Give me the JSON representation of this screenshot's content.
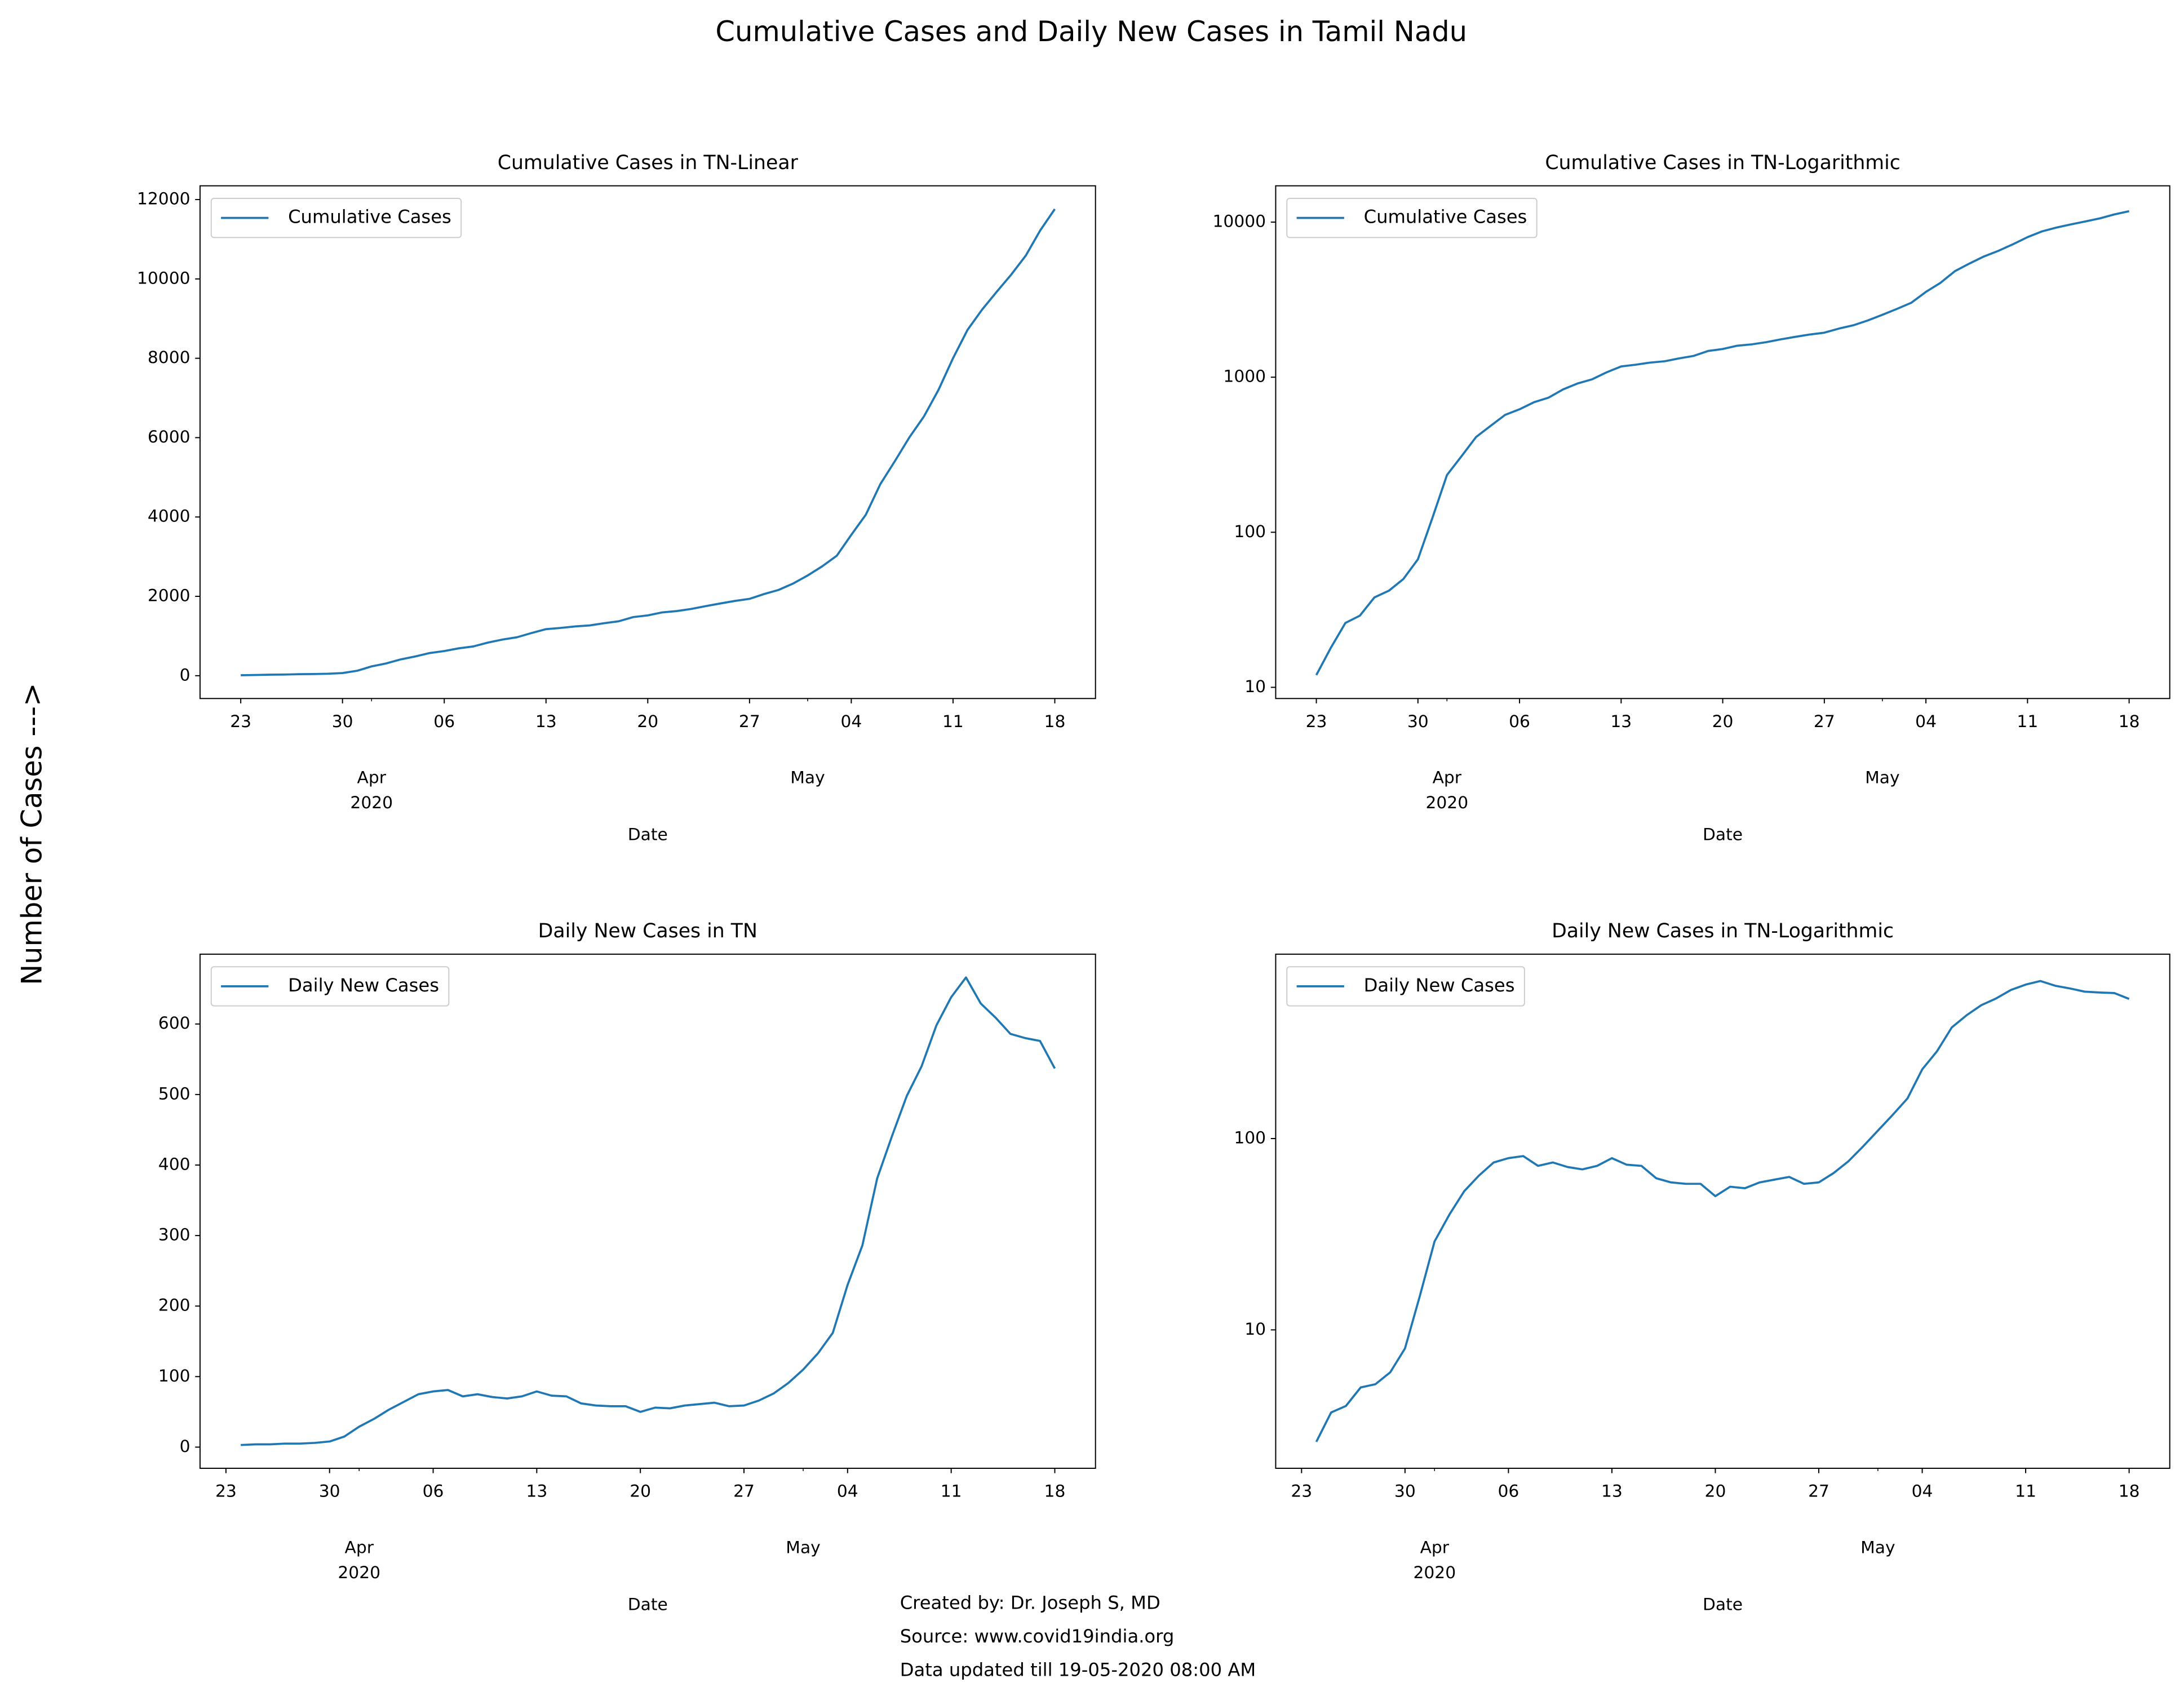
{
  "title": "Cumulative Cases and Daily New Cases in Tamil Nadu",
  "ylabel": "Number of Cases --->",
  "notes": [
    "Created by: Dr. Joseph S, MD",
    "Source: www.covid19india.org",
    "Data updated till 19-05-2020 08:00 AM"
  ],
  "chart_data": [
    {
      "type": "line",
      "title": "Cumulative Cases in TN-Linear",
      "xlabel": "Date",
      "yscale": "linear",
      "legend": "upper left",
      "x": [
        "2020-03-23",
        "2020-03-24",
        "2020-03-25",
        "2020-03-26",
        "2020-03-27",
        "2020-03-28",
        "2020-03-29",
        "2020-03-30",
        "2020-03-31",
        "2020-04-01",
        "2020-04-02",
        "2020-04-03",
        "2020-04-04",
        "2020-04-05",
        "2020-04-06",
        "2020-04-07",
        "2020-04-08",
        "2020-04-09",
        "2020-04-10",
        "2020-04-11",
        "2020-04-12",
        "2020-04-13",
        "2020-04-14",
        "2020-04-15",
        "2020-04-16",
        "2020-04-17",
        "2020-04-18",
        "2020-04-19",
        "2020-04-20",
        "2020-04-21",
        "2020-04-22",
        "2020-04-23",
        "2020-04-24",
        "2020-04-25",
        "2020-04-26",
        "2020-04-27",
        "2020-04-28",
        "2020-04-29",
        "2020-04-30",
        "2020-05-01",
        "2020-05-02",
        "2020-05-03",
        "2020-05-04",
        "2020-05-05",
        "2020-05-06",
        "2020-05-07",
        "2020-05-08",
        "2020-05-09",
        "2020-05-10",
        "2020-05-11",
        "2020-05-12",
        "2020-05-13",
        "2020-05-14",
        "2020-05-15",
        "2020-05-16",
        "2020-05-17",
        "2020-05-18"
      ],
      "series": [
        {
          "name": "Cumulative Cases",
          "color": "#1f77b4",
          "values": [
            12,
            18,
            26,
            29,
            38,
            42,
            50,
            67,
            124,
            234,
            309,
            411,
            485,
            571,
            621,
            690,
            738,
            834,
            911,
            969,
            1075,
            1173,
            1204,
            1242,
            1267,
            1323,
            1372,
            1477,
            1520,
            1596,
            1629,
            1683,
            1755,
            1821,
            1885,
            1937,
            2058,
            2162,
            2323,
            2526,
            2757,
            3023,
            3550,
            4058,
            4829,
            5409,
            6009,
            6535,
            7204,
            8002,
            8718,
            9227,
            9674,
            10108,
            10585,
            11224,
            11760
          ]
        }
      ],
      "xlim": [
        "2020-03-20T04:48:00Z",
        "2020-05-20T19:12:00Z"
      ],
      "xticks": [
        {
          "value": "2020-03-23",
          "label": "23"
        },
        {
          "value": "2020-03-30",
          "label": "30"
        },
        {
          "value": "2020-04-06",
          "label": "06"
        },
        {
          "value": "2020-04-13",
          "label": "13"
        },
        {
          "value": "2020-04-20",
          "label": "20"
        },
        {
          "value": "2020-04-27",
          "label": "27"
        },
        {
          "value": "2020-05-04",
          "label": "04"
        },
        {
          "value": "2020-05-11",
          "label": "11"
        },
        {
          "value": "2020-05-18",
          "label": "18"
        }
      ],
      "xminorticks": [
        {
          "value": "2020-04-01",
          "label": "Apr\n2020"
        },
        {
          "value": "2020-05-01",
          "label": "May"
        }
      ],
      "ylim": [
        -575,
        12347
      ],
      "yticks": [
        0,
        2000,
        4000,
        6000,
        8000,
        10000,
        12000
      ]
    },
    {
      "type": "line",
      "title": "Cumulative Cases in TN-Logarithmic",
      "xlabel": "Date",
      "yscale": "log",
      "legend": "upper left",
      "x": [
        "2020-03-23",
        "2020-03-24",
        "2020-03-25",
        "2020-03-26",
        "2020-03-27",
        "2020-03-28",
        "2020-03-29",
        "2020-03-30",
        "2020-03-31",
        "2020-04-01",
        "2020-04-02",
        "2020-04-03",
        "2020-04-04",
        "2020-04-05",
        "2020-04-06",
        "2020-04-07",
        "2020-04-08",
        "2020-04-09",
        "2020-04-10",
        "2020-04-11",
        "2020-04-12",
        "2020-04-13",
        "2020-04-14",
        "2020-04-15",
        "2020-04-16",
        "2020-04-17",
        "2020-04-18",
        "2020-04-19",
        "2020-04-20",
        "2020-04-21",
        "2020-04-22",
        "2020-04-23",
        "2020-04-24",
        "2020-04-25",
        "2020-04-26",
        "2020-04-27",
        "2020-04-28",
        "2020-04-29",
        "2020-04-30",
        "2020-05-01",
        "2020-05-02",
        "2020-05-03",
        "2020-05-04",
        "2020-05-05",
        "2020-05-06",
        "2020-05-07",
        "2020-05-08",
        "2020-05-09",
        "2020-05-10",
        "2020-05-11",
        "2020-05-12",
        "2020-05-13",
        "2020-05-14",
        "2020-05-15",
        "2020-05-16",
        "2020-05-17",
        "2020-05-18"
      ],
      "series": [
        {
          "name": "Cumulative Cases",
          "color": "#1f77b4",
          "values": [
            12,
            18,
            26,
            29,
            38,
            42,
            50,
            67,
            124,
            234,
            309,
            411,
            485,
            571,
            621,
            690,
            738,
            834,
            911,
            969,
            1075,
            1173,
            1204,
            1242,
            1267,
            1323,
            1372,
            1477,
            1520,
            1596,
            1629,
            1683,
            1755,
            1821,
            1885,
            1937,
            2058,
            2162,
            2323,
            2526,
            2757,
            3023,
            3550,
            4058,
            4829,
            5409,
            6009,
            6535,
            7204,
            8002,
            8718,
            9227,
            9674,
            10108,
            10585,
            11224,
            11760
          ]
        }
      ],
      "xlim": [
        "2020-03-20T04:48:00Z",
        "2020-05-20T19:12:00Z"
      ],
      "xticks": [
        {
          "value": "2020-03-23",
          "label": "23"
        },
        {
          "value": "2020-03-30",
          "label": "30"
        },
        {
          "value": "2020-04-06",
          "label": "06"
        },
        {
          "value": "2020-04-13",
          "label": "13"
        },
        {
          "value": "2020-04-20",
          "label": "20"
        },
        {
          "value": "2020-04-27",
          "label": "27"
        },
        {
          "value": "2020-05-04",
          "label": "04"
        },
        {
          "value": "2020-05-11",
          "label": "11"
        },
        {
          "value": "2020-05-18",
          "label": "18"
        }
      ],
      "xminorticks": [
        {
          "value": "2020-04-01",
          "label": "Apr\n2020"
        },
        {
          "value": "2020-05-01",
          "label": "May"
        }
      ],
      "ylim": [
        8.47,
        17150
      ],
      "yticks": [
        10,
        100,
        1000,
        10000
      ]
    },
    {
      "type": "line",
      "title": "Daily New Cases in TN",
      "xlabel": "Date",
      "yscale": "linear",
      "legend": "upper left",
      "x": [
        "2020-03-24",
        "2020-03-25",
        "2020-03-26",
        "2020-03-27",
        "2020-03-28",
        "2020-03-29",
        "2020-03-30",
        "2020-03-31",
        "2020-04-01",
        "2020-04-02",
        "2020-04-03",
        "2020-04-04",
        "2020-04-05",
        "2020-04-06",
        "2020-04-07",
        "2020-04-08",
        "2020-04-09",
        "2020-04-10",
        "2020-04-11",
        "2020-04-12",
        "2020-04-13",
        "2020-04-14",
        "2020-04-15",
        "2020-04-16",
        "2020-04-17",
        "2020-04-18",
        "2020-04-19",
        "2020-04-20",
        "2020-04-21",
        "2020-04-22",
        "2020-04-23",
        "2020-04-24",
        "2020-04-25",
        "2020-04-26",
        "2020-04-27",
        "2020-04-28",
        "2020-04-29",
        "2020-04-30",
        "2020-05-01",
        "2020-05-02",
        "2020-05-03",
        "2020-05-04",
        "2020-05-05",
        "2020-05-06",
        "2020-05-07",
        "2020-05-08",
        "2020-05-09",
        "2020-05-10",
        "2020-05-11",
        "2020-05-12",
        "2020-05-13",
        "2020-05-14",
        "2020-05-15",
        "2020-05-16",
        "2020-05-17",
        "2020-05-18"
      ],
      "series": [
        {
          "name": "Daily New Cases",
          "color": "#1f77b4",
          "values": [
            3,
            4,
            4,
            5,
            5,
            6,
            8,
            15,
            29,
            40,
            53,
            64,
            75,
            79,
            81,
            72,
            75,
            71,
            69,
            72,
            79,
            73,
            72,
            62,
            59,
            58,
            58,
            50,
            56,
            55,
            59,
            61,
            63,
            58,
            59,
            66,
            76,
            91,
            110,
            133,
            162,
            230,
            286,
            381,
            441,
            498,
            540,
            598,
            638,
            666,
            629,
            609,
            586,
            580,
            576,
            537
          ]
        }
      ],
      "xlim": [
        "2020-03-21T06:00:00Z",
        "2020-05-20T18:00:00Z"
      ],
      "xticks": [
        {
          "value": "2020-03-23",
          "label": "23"
        },
        {
          "value": "2020-03-30",
          "label": "30"
        },
        {
          "value": "2020-04-06",
          "label": "06"
        },
        {
          "value": "2020-04-13",
          "label": "13"
        },
        {
          "value": "2020-04-20",
          "label": "20"
        },
        {
          "value": "2020-04-27",
          "label": "27"
        },
        {
          "value": "2020-05-04",
          "label": "04"
        },
        {
          "value": "2020-05-11",
          "label": "11"
        },
        {
          "value": "2020-05-18",
          "label": "18"
        }
      ],
      "xminorticks": [
        {
          "value": "2020-04-01",
          "label": "Apr\n2020"
        },
        {
          "value": "2020-05-01",
          "label": "May"
        }
      ],
      "ylim": [
        -30,
        699
      ],
      "yticks": [
        0,
        100,
        200,
        300,
        400,
        500,
        600
      ]
    },
    {
      "type": "line",
      "title": "Daily New Cases in TN-Logarithmic",
      "xlabel": "Date",
      "yscale": "log",
      "legend": "upper left",
      "x": [
        "2020-03-24",
        "2020-03-25",
        "2020-03-26",
        "2020-03-27",
        "2020-03-28",
        "2020-03-29",
        "2020-03-30",
        "2020-03-31",
        "2020-04-01",
        "2020-04-02",
        "2020-04-03",
        "2020-04-04",
        "2020-04-05",
        "2020-04-06",
        "2020-04-07",
        "2020-04-08",
        "2020-04-09",
        "2020-04-10",
        "2020-04-11",
        "2020-04-12",
        "2020-04-13",
        "2020-04-14",
        "2020-04-15",
        "2020-04-16",
        "2020-04-17",
        "2020-04-18",
        "2020-04-19",
        "2020-04-20",
        "2020-04-21",
        "2020-04-22",
        "2020-04-23",
        "2020-04-24",
        "2020-04-25",
        "2020-04-26",
        "2020-04-27",
        "2020-04-28",
        "2020-04-29",
        "2020-04-30",
        "2020-05-01",
        "2020-05-02",
        "2020-05-03",
        "2020-05-04",
        "2020-05-05",
        "2020-05-06",
        "2020-05-07",
        "2020-05-08",
        "2020-05-09",
        "2020-05-10",
        "2020-05-11",
        "2020-05-12",
        "2020-05-13",
        "2020-05-14",
        "2020-05-15",
        "2020-05-16",
        "2020-05-17",
        "2020-05-18"
      ],
      "series": [
        {
          "name": "Daily New Cases",
          "color": "#1f77b4",
          "values": [
            2.6,
            3.7,
            4,
            5,
            5.2,
            6,
            8,
            15,
            29,
            40,
            53,
            64,
            75,
            79,
            81,
            72,
            75,
            71,
            69,
            72,
            79,
            73,
            72,
            62,
            59,
            58,
            58,
            50,
            56,
            55,
            59,
            61,
            63,
            58,
            59,
            66,
            76,
            91,
            110,
            133,
            162,
            230,
            286,
            381,
            441,
            498,
            540,
            598,
            638,
            666,
            629,
            609,
            586,
            580,
            576,
            537
          ]
        }
      ],
      "xlim": [
        "2020-03-21T06:00:00Z",
        "2020-05-20T18:00:00Z"
      ],
      "xticks": [
        {
          "value": "2020-03-23",
          "label": "23"
        },
        {
          "value": "2020-03-30",
          "label": "30"
        },
        {
          "value": "2020-04-06",
          "label": "06"
        },
        {
          "value": "2020-04-13",
          "label": "13"
        },
        {
          "value": "2020-04-20",
          "label": "20"
        },
        {
          "value": "2020-04-27",
          "label": "27"
        },
        {
          "value": "2020-05-04",
          "label": "04"
        },
        {
          "value": "2020-05-11",
          "label": "11"
        },
        {
          "value": "2020-05-18",
          "label": "18"
        }
      ],
      "xminorticks": [
        {
          "value": "2020-04-01",
          "label": "Apr\n2020"
        },
        {
          "value": "2020-05-01",
          "label": "May"
        }
      ],
      "ylim": [
        1.89,
        920
      ],
      "yticks": [
        10,
        100
      ]
    }
  ]
}
